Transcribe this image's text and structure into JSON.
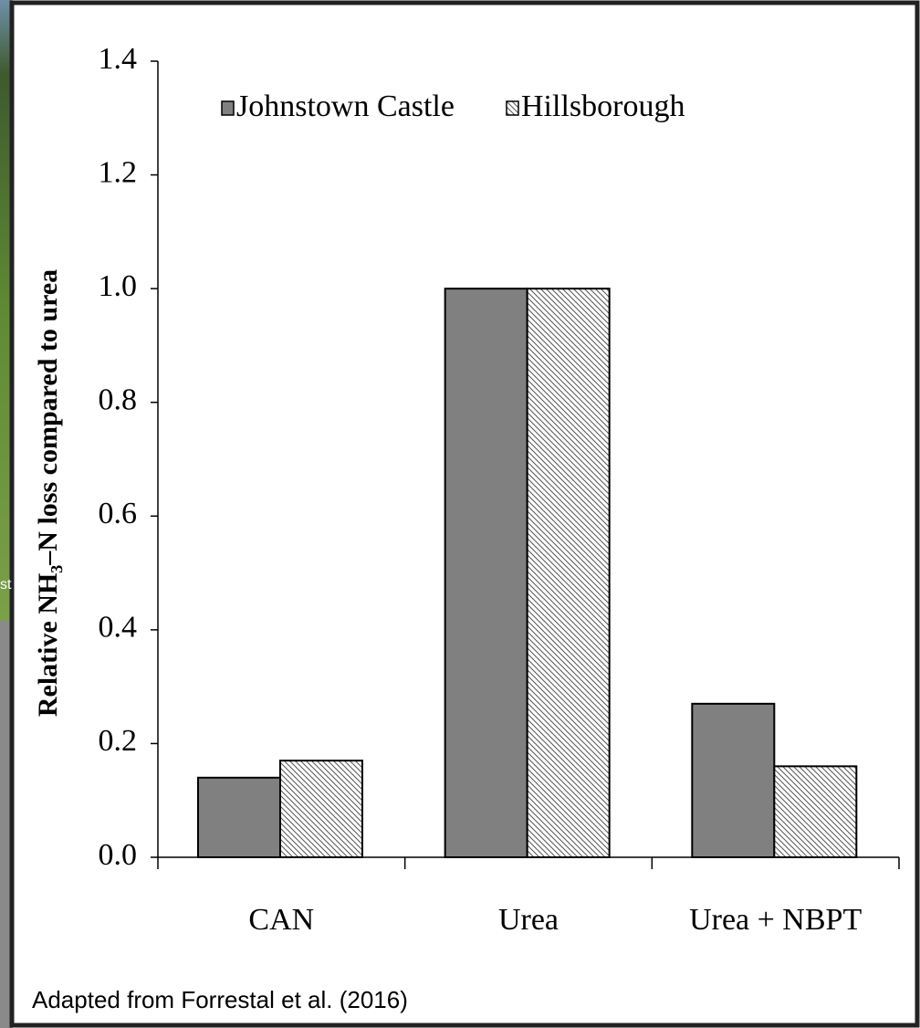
{
  "background_text": "st",
  "chart_data": {
    "type": "bar",
    "ylabel": "Relative NH₃–N loss compared to urea",
    "categories": [
      "CAN",
      "Urea",
      "Urea + NBPT"
    ],
    "series": [
      {
        "name": "Johnstown Castle",
        "color": "#808080",
        "values": [
          0.14,
          1.0,
          0.27
        ]
      },
      {
        "name": "Hillsborough",
        "color": "#555555",
        "hatch": true,
        "values": [
          0.17,
          1.0,
          0.16
        ]
      }
    ],
    "ylim": [
      0,
      1.4
    ],
    "yticks": [
      {
        "value": 0,
        "label": "0.0"
      },
      0.2,
      0.4,
      0.6,
      0.8,
      {
        "value": 1,
        "label": "1.0"
      },
      1.2,
      1.4
    ],
    "source": "Adapted from Forrestal et al. (2016)"
  }
}
